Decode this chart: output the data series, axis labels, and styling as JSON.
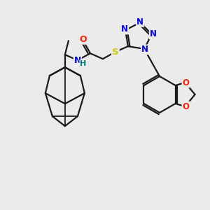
{
  "background_color": "#ebebeb",
  "bond_color": "#1a1a1a",
  "atom_colors": {
    "N": "#0000ff",
    "O": "#ff2200",
    "S": "#cccc00",
    "C": "#1a1a1a",
    "H": "#008080"
  },
  "figsize": [
    3.0,
    3.0
  ],
  "dpi": 100
}
